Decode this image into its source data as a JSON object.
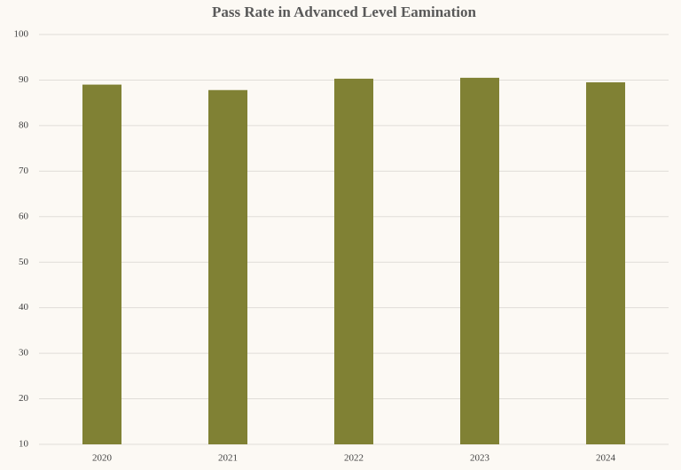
{
  "chart_data": {
    "type": "bar",
    "title": "Pass Rate in Advanced Level Eamination",
    "categories": [
      "2020",
      "2021",
      "2022",
      "2023",
      "2024"
    ],
    "values": [
      89.0,
      87.8,
      90.3,
      90.5,
      89.5
    ],
    "color": "#808134",
    "ylim": [
      10,
      100
    ],
    "yticks": [
      10,
      20,
      30,
      40,
      50,
      60,
      70,
      80,
      90,
      100
    ],
    "grid": true
  }
}
